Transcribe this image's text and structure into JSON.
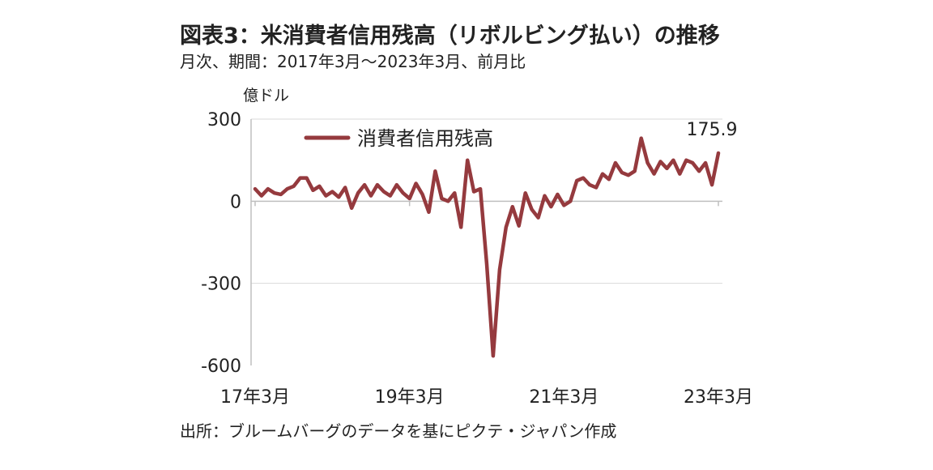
{
  "header": {
    "title": "図表3：米消費者信用残高（リボルビング払い）の推移",
    "subtitle": "月次、期間：2017年3月～2023年3月、前月比"
  },
  "footer": {
    "source": "出所：ブルームバーグのデータを基にピクテ・ジャパン作成"
  },
  "chart_data": {
    "type": "line",
    "unit_label": "億ドル",
    "ylim": [
      -600,
      300
    ],
    "y_ticks": [
      {
        "value": 300,
        "label": "300"
      },
      {
        "value": 0,
        "label": "0"
      },
      {
        "value": -300,
        "label": "-300"
      },
      {
        "value": -600,
        "label": "-600"
      }
    ],
    "x_ticks": [
      {
        "index": 0,
        "label": "17年3月"
      },
      {
        "index": 24,
        "label": "19年3月"
      },
      {
        "index": 48,
        "label": "21年3月"
      },
      {
        "index": 72,
        "label": "23年3月"
      }
    ],
    "grid": "horizontal",
    "legend_position": "top-left",
    "series_color": "#953a3e",
    "series": [
      {
        "name": "消費者信用残高",
        "values": [
          45,
          20,
          45,
          30,
          25,
          45,
          55,
          85,
          85,
          40,
          55,
          20,
          35,
          15,
          50,
          -25,
          30,
          60,
          20,
          60,
          35,
          20,
          60,
          30,
          10,
          65,
          25,
          -40,
          110,
          10,
          0,
          30,
          -95,
          150,
          35,
          45,
          -230,
          -565,
          -250,
          -95,
          -20,
          -90,
          30,
          -30,
          -60,
          20,
          -20,
          25,
          -15,
          0,
          75,
          85,
          60,
          50,
          100,
          80,
          140,
          105,
          95,
          110,
          230,
          140,
          100,
          145,
          120,
          150,
          100,
          150,
          140,
          110,
          140,
          60,
          175.9
        ]
      }
    ],
    "annotations": [
      {
        "label": "175.9",
        "index": 72,
        "value": 175.9
      }
    ]
  }
}
